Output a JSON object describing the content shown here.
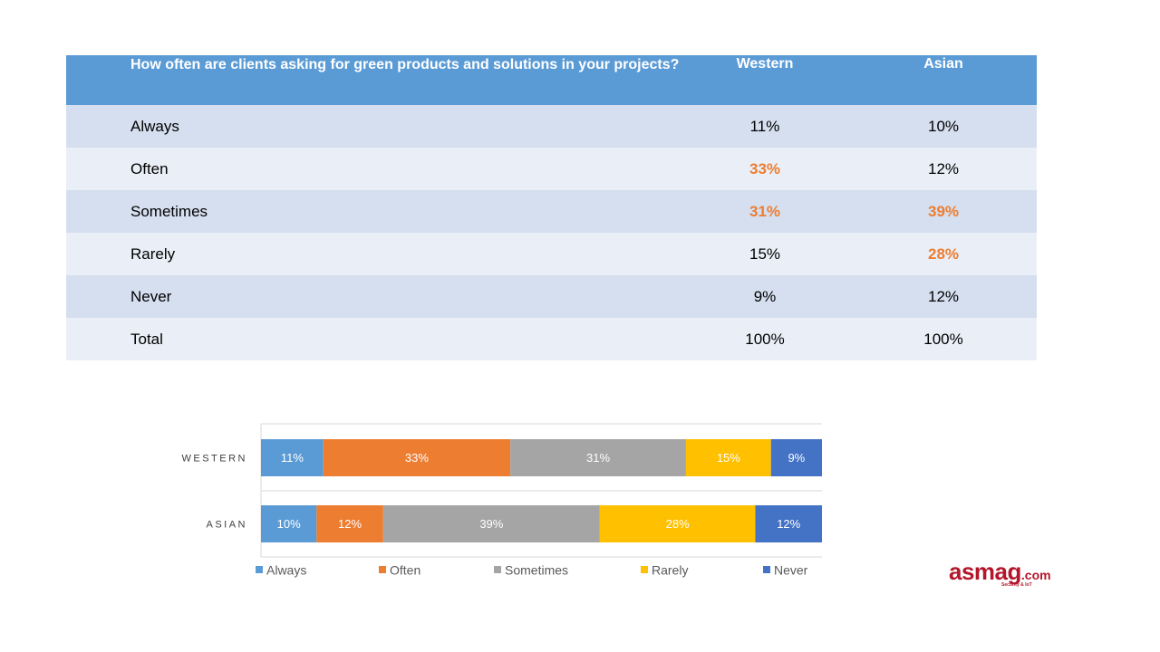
{
  "table": {
    "question": "How often are clients asking for green products and solutions in your projects?",
    "columns": [
      "Western",
      "Asian"
    ],
    "rows": [
      {
        "label": "Always",
        "western": "11%",
        "asian": "10%",
        "western_hl": false,
        "asian_hl": false
      },
      {
        "label": "Often",
        "western": "33%",
        "asian": "12%",
        "western_hl": true,
        "asian_hl": false
      },
      {
        "label": "Sometimes",
        "western": "31%",
        "asian": "39%",
        "western_hl": true,
        "asian_hl": true
      },
      {
        "label": "Rarely",
        "western": "15%",
        "asian": "28%",
        "western_hl": false,
        "asian_hl": true
      },
      {
        "label": "Never",
        "western": "9%",
        "asian": "12%",
        "western_hl": false,
        "asian_hl": false
      },
      {
        "label": "Total",
        "western": "100%",
        "asian": "100%",
        "western_hl": false,
        "asian_hl": false
      }
    ],
    "colors": {
      "header_bg": "#5b9bd5",
      "row_odd": "#d5dfef",
      "row_even": "#eaeff7",
      "highlight_text": "#ed7d31"
    }
  },
  "chart_data": {
    "type": "bar",
    "orientation": "horizontal",
    "stacked": "100%",
    "categories": [
      "WESTERN",
      "ASIAN"
    ],
    "series": [
      {
        "name": "Always",
        "color": "#5b9bd5",
        "values": [
          11,
          10
        ]
      },
      {
        "name": "Often",
        "color": "#ed7d31",
        "values": [
          33,
          12
        ]
      },
      {
        "name": "Sometimes",
        "color": "#a5a5a5",
        "values": [
          31,
          39
        ]
      },
      {
        "name": "Rarely",
        "color": "#ffc000",
        "values": [
          15,
          28
        ]
      },
      {
        "name": "Never",
        "color": "#4472c4",
        "values": [
          9,
          12
        ]
      }
    ],
    "data_label_suffix": "%",
    "legend_position": "bottom",
    "grid": true
  },
  "logo": {
    "brand": "asmag",
    "suffix": ".com",
    "tagline": "Security & IoT"
  }
}
